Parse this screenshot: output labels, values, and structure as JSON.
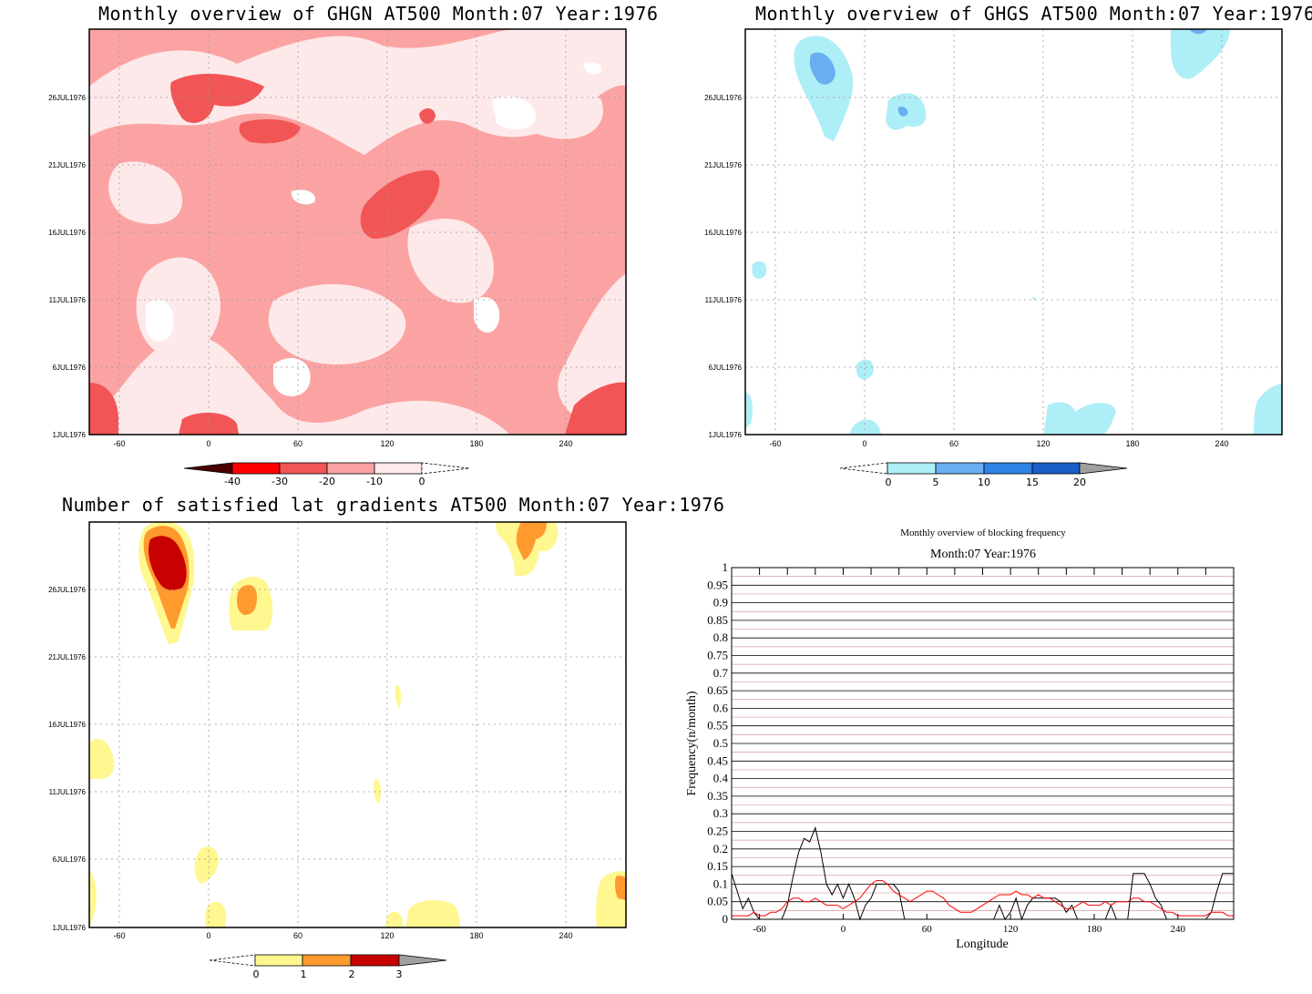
{
  "panels": {
    "ghgn": {
      "title": "Monthly overview of GHGN AT500 Month:07 Year:1976",
      "y_ticks": [
        "26JUL1976",
        "21JUL1976",
        "16JUL1976",
        "11JUL1976",
        "6JUL1976",
        "1JUL1976"
      ],
      "x_ticks": [
        "-60",
        "0",
        "60",
        "120",
        "180",
        "240"
      ],
      "colorbar": {
        "labels": [
          "-40",
          "-30",
          "-20",
          "-10",
          "0"
        ],
        "colors": [
          "#4a0000",
          "#ff0000",
          "#f25555",
          "#fba3a3",
          "#fde9e9",
          "#ffffff"
        ]
      }
    },
    "ghgs": {
      "title": "Monthly overview of GHGS AT500 Month:07 Year:1976",
      "y_ticks": [
        "26JUL1976",
        "21JUL1976",
        "16JUL1976",
        "11JUL1976",
        "6JUL1976",
        "1JUL1976"
      ],
      "x_ticks": [
        "-60",
        "0",
        "60",
        "120",
        "180",
        "240"
      ],
      "colorbar": {
        "labels": [
          "0",
          "5",
          "10",
          "15",
          "20"
        ],
        "colors": [
          "#ffffff",
          "#aeeef7",
          "#69aef0",
          "#2e82e6",
          "#1a5fc7",
          "#a0a0a0"
        ]
      }
    },
    "gradients": {
      "title": "Number of satisfied lat gradients AT500 Month:07 Year:1976",
      "y_ticks": [
        "26JUL1976",
        "21JUL1976",
        "16JUL1976",
        "11JUL1976",
        "6JUL1976",
        "1JUL1976"
      ],
      "x_ticks": [
        "-60",
        "0",
        "60",
        "120",
        "180",
        "240"
      ],
      "colorbar": {
        "labels": [
          "0",
          "1",
          "2",
          "3"
        ],
        "colors": [
          "#ffffff",
          "#fff78f",
          "#ff9a2e",
          "#c80000",
          "#a0a0a0"
        ]
      }
    },
    "frequency": {
      "title": "Monthly overview of blocking frequency",
      "subtitle": "Month:07 Year:1976",
      "xlabel": "Longitude",
      "ylabel": "Frequency(n/month)"
    }
  },
  "chart_data": [
    {
      "type": "heatmap",
      "title": "Monthly overview of GHGN AT500 Month:07 Year:1976",
      "x_ticks": [
        -60,
        0,
        60,
        120,
        180,
        240
      ],
      "xlim": [
        -80,
        280
      ],
      "y_ticks": [
        "1JUL1976",
        "6JUL1976",
        "11JUL1976",
        "16JUL1976",
        "21JUL1976",
        "26JUL1976"
      ],
      "levels": [
        -40,
        -30,
        -20,
        -10,
        0
      ],
      "colors": [
        "#4a0000",
        "#ff0000",
        "#f25555",
        "#fba3a3",
        "#fde9e9",
        "#ffffff"
      ]
    },
    {
      "type": "heatmap",
      "title": "Monthly overview of GHGS AT500 Month:07 Year:1976",
      "x_ticks": [
        -60,
        0,
        60,
        120,
        180,
        240
      ],
      "xlim": [
        -80,
        280
      ],
      "y_ticks": [
        "1JUL1976",
        "6JUL1976",
        "11JUL1976",
        "16JUL1976",
        "21JUL1976",
        "26JUL1976"
      ],
      "levels": [
        0,
        5,
        10,
        15,
        20
      ],
      "colors": [
        "#ffffff",
        "#aeeef7",
        "#69aef0",
        "#2e82e6",
        "#1a5fc7",
        "#a0a0a0"
      ]
    },
    {
      "type": "heatmap",
      "title": "Number of satisfied lat gradients AT500 Month:07 Year:1976",
      "x_ticks": [
        -60,
        0,
        60,
        120,
        180,
        240
      ],
      "xlim": [
        -80,
        280
      ],
      "y_ticks": [
        "1JUL1976",
        "6JUL1976",
        "11JUL1976",
        "16JUL1976",
        "21JUL1976",
        "26JUL1976"
      ],
      "levels": [
        0,
        1,
        2,
        3
      ],
      "colors": [
        "#ffffff",
        "#fff78f",
        "#ff9a2e",
        "#c80000",
        "#a0a0a0"
      ]
    },
    {
      "type": "line",
      "title": "Monthly overview of blocking frequency",
      "subtitle": "Month:07 Year:1976",
      "xlabel": "Longitude",
      "ylabel": "Frequency(n/month)",
      "xlim": [
        -80,
        280
      ],
      "ylim": [
        0,
        1
      ],
      "x_ticks": [
        -60,
        0,
        60,
        120,
        180,
        240
      ],
      "y_ticks": [
        "0",
        "0.05",
        "0.1",
        "0.15",
        "0.2",
        "0.25",
        "0.3",
        "0.35",
        "0.4",
        "0.45",
        "0.5",
        "0.55",
        "0.6",
        "0.65",
        "0.7",
        "0.75",
        "0.8",
        "0.85",
        "0.9",
        "0.95",
        "1"
      ],
      "grid": true,
      "series": [
        {
          "color": "#000000",
          "x": [
            -80,
            -76,
            -72,
            -68,
            -64,
            -60,
            -56,
            -52,
            -48,
            -44,
            -40,
            -36,
            -32,
            -28,
            -24,
            -20,
            -16,
            -12,
            -8,
            -4,
            0,
            4,
            8,
            12,
            16,
            20,
            24,
            28,
            32,
            36,
            40,
            44,
            48,
            52,
            56,
            60,
            64,
            68,
            72,
            76,
            80,
            84,
            88,
            92,
            96,
            100,
            104,
            108,
            112,
            116,
            120,
            124,
            128,
            132,
            136,
            140,
            144,
            148,
            152,
            156,
            160,
            164,
            168,
            172,
            176,
            180,
            184,
            188,
            192,
            196,
            200,
            204,
            208,
            212,
            216,
            220,
            224,
            228,
            232,
            236,
            240,
            244,
            248,
            252,
            256,
            260,
            264,
            268,
            272,
            276,
            280
          ],
          "y": [
            0.13,
            0.08,
            0.03,
            0.06,
            0.02,
            0,
            0,
            0,
            0,
            0,
            0.04,
            0.12,
            0.19,
            0.23,
            0.22,
            0.26,
            0.19,
            0.1,
            0.07,
            0.1,
            0.06,
            0.1,
            0.06,
            0,
            0.04,
            0.06,
            0.1,
            0.1,
            0.1,
            0.1,
            0.08,
            0,
            0,
            0,
            0,
            0,
            0,
            0,
            0,
            0,
            0,
            0,
            0,
            0,
            0,
            0,
            0,
            0,
            0.04,
            0,
            0.02,
            0.06,
            0,
            0.04,
            0.06,
            0.06,
            0.06,
            0.06,
            0.06,
            0.05,
            0.02,
            0.04,
            0,
            0,
            0,
            0,
            0,
            0,
            0.04,
            0,
            0,
            0,
            0.13,
            0.13,
            0.13,
            0.1,
            0.06,
            0.04,
            0,
            0,
            0,
            0,
            0,
            0,
            0,
            0,
            0.02,
            0.08,
            0.13,
            0.13,
            0.13
          ]
        },
        {
          "color": "#ff0000",
          "x": [
            -80,
            -76,
            -72,
            -68,
            -64,
            -60,
            -56,
            -52,
            -48,
            -44,
            -40,
            -36,
            -32,
            -28,
            -24,
            -20,
            -16,
            -12,
            -8,
            -4,
            0,
            4,
            8,
            12,
            16,
            20,
            24,
            28,
            32,
            36,
            40,
            44,
            48,
            52,
            56,
            60,
            64,
            68,
            72,
            76,
            80,
            84,
            88,
            92,
            96,
            100,
            104,
            108,
            112,
            116,
            120,
            124,
            128,
            132,
            136,
            140,
            144,
            148,
            152,
            156,
            160,
            164,
            168,
            172,
            176,
            180,
            184,
            188,
            192,
            196,
            200,
            204,
            208,
            212,
            216,
            220,
            224,
            228,
            232,
            236,
            240,
            244,
            248,
            252,
            256,
            260,
            264,
            268,
            272,
            276,
            280
          ],
          "y": [
            0.01,
            0.01,
            0.01,
            0.01,
            0.02,
            0.01,
            0.01,
            0.02,
            0.02,
            0.03,
            0.05,
            0.06,
            0.06,
            0.05,
            0.05,
            0.06,
            0.05,
            0.04,
            0.04,
            0.04,
            0.03,
            0.04,
            0.05,
            0.06,
            0.08,
            0.1,
            0.11,
            0.11,
            0.1,
            0.08,
            0.07,
            0.06,
            0.05,
            0.06,
            0.07,
            0.08,
            0.08,
            0.07,
            0.06,
            0.04,
            0.03,
            0.02,
            0.02,
            0.02,
            0.03,
            0.04,
            0.05,
            0.06,
            0.07,
            0.07,
            0.07,
            0.08,
            0.07,
            0.07,
            0.06,
            0.07,
            0.06,
            0.06,
            0.05,
            0.04,
            0.03,
            0.03,
            0.04,
            0.05,
            0.04,
            0.04,
            0.04,
            0.05,
            0.04,
            0.05,
            0.05,
            0.05,
            0.06,
            0.06,
            0.05,
            0.05,
            0.04,
            0.03,
            0.02,
            0.02,
            0.01,
            0.01,
            0.01,
            0.01,
            0.01,
            0.01,
            0.02,
            0.02,
            0.02,
            0.01,
            0.01
          ]
        }
      ]
    }
  ]
}
